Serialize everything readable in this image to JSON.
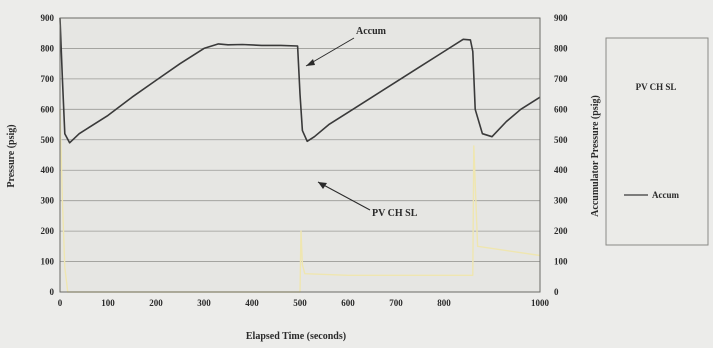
{
  "chart_data": {
    "type": "line",
    "title": "",
    "xlabel": "Elapsed Time (seconds)",
    "ylabel": "Pressure (psig)",
    "ylabel_right": "Accumulator Pressure (psig)",
    "xlim": [
      0,
      1000
    ],
    "ylim": [
      0,
      900
    ],
    "ylim_right": [
      0,
      900
    ],
    "x_ticks": [
      "0",
      "100",
      "200",
      "300",
      "400",
      "500",
      "600",
      "700",
      "800",
      "1000"
    ],
    "x_tick_values": [
      0,
      100,
      200,
      300,
      400,
      500,
      600,
      700,
      800,
      1000
    ],
    "y_ticks": [
      "0",
      "100",
      "200",
      "300",
      "400",
      "500",
      "600",
      "700",
      "800",
      "900"
    ],
    "y_ticks_right": [
      "0",
      "100",
      "200",
      "300",
      "400",
      "500",
      "600",
      "700",
      "800",
      "900"
    ],
    "grid": true,
    "legend_placement": "right",
    "annotations": [
      {
        "text": "Accum",
        "target_series": "Accum"
      },
      {
        "text": "PV CH SL",
        "target_series": "PV CH SL"
      }
    ],
    "series": [
      {
        "name": "Accum",
        "color": "#3a3a3a",
        "x": [
          0,
          5,
          10,
          20,
          40,
          60,
          100,
          150,
          200,
          250,
          300,
          330,
          350,
          380,
          420,
          460,
          495,
          500,
          505,
          515,
          530,
          560,
          600,
          650,
          700,
          750,
          800,
          840,
          855,
          860,
          865,
          880,
          900,
          930,
          960,
          1000
        ],
        "y": [
          900,
          700,
          520,
          490,
          520,
          540,
          580,
          640,
          695,
          750,
          800,
          815,
          812,
          813,
          810,
          810,
          808,
          650,
          530,
          495,
          510,
          550,
          590,
          640,
          690,
          740,
          790,
          830,
          828,
          790,
          600,
          520,
          510,
          560,
          600,
          640
        ]
      },
      {
        "name": "PV CH SL",
        "color": "#efe6b0",
        "x": [
          0,
          5,
          10,
          14,
          16,
          20,
          500,
          502,
          505,
          510,
          600,
          700,
          840,
          860,
          862,
          870,
          1000
        ],
        "y": [
          600,
          300,
          80,
          30,
          0,
          0,
          0,
          200,
          90,
          60,
          55,
          55,
          55,
          55,
          480,
          150,
          120
        ]
      }
    ]
  },
  "legend": {
    "top_label": "PV CH SL",
    "bottom_label": "Accum"
  },
  "colors": {
    "background": "#ececea",
    "plot_background": "#e6e6e3",
    "gridline": "#9a9a96",
    "accum": "#3a3a3a",
    "pv": "#efe6b0"
  }
}
